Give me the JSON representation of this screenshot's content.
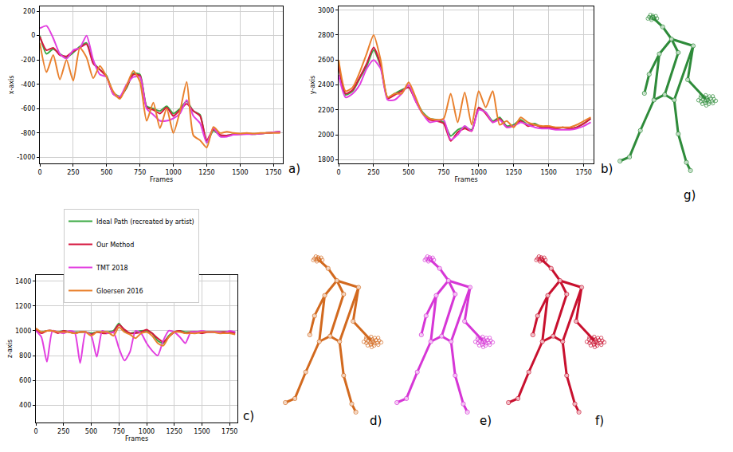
{
  "chart_data": [
    {
      "type": "line",
      "label": "a)",
      "x_label": "Frames",
      "y_label": "x-axis",
      "grid": true,
      "legend": "left",
      "x": [
        0,
        50,
        100,
        150,
        200,
        250,
        300,
        350,
        400,
        450,
        500,
        550,
        600,
        650,
        700,
        750,
        800,
        850,
        900,
        950,
        1000,
        1050,
        1100,
        1150,
        1200,
        1250,
        1300,
        1350,
        1400,
        1450,
        1500,
        1550,
        1600,
        1650,
        1700,
        1750,
        1800
      ],
      "xlim": [
        0,
        1820
      ],
      "xticks": [
        0,
        250,
        500,
        750,
        1000,
        1250,
        1500,
        1750
      ],
      "ylim": [
        -1050,
        240
      ],
      "yticks": [
        -1000,
        -800,
        -600,
        -400,
        -200,
        0,
        200
      ],
      "series": [
        {
          "name": "Ideal Path (recreated by artist)",
          "color": "#3aa843",
          "values": [
            0,
            -150,
            -110,
            -150,
            -180,
            -140,
            -90,
            -60,
            -220,
            -280,
            -330,
            -470,
            -500,
            -430,
            -310,
            -320,
            -580,
            -600,
            -620,
            -580,
            -640,
            -600,
            -540,
            -620,
            -650,
            -880,
            -780,
            -820,
            -820,
            -810,
            -810,
            -805,
            -810,
            -805,
            -800,
            -795,
            -790
          ]
        },
        {
          "name": "Our Method",
          "color": "#d6173f",
          "values": [
            -10,
            -120,
            -100,
            -160,
            -170,
            -130,
            -100,
            -70,
            -230,
            -280,
            -340,
            -480,
            -510,
            -420,
            -320,
            -330,
            -590,
            -610,
            -640,
            -590,
            -660,
            -610,
            -560,
            -620,
            -660,
            -860,
            -770,
            -815,
            -820,
            -812,
            -808,
            -805,
            -808,
            -805,
            -800,
            -795,
            -790
          ]
        },
        {
          "name": "TMT 2018",
          "color": "#e23fe0",
          "values": [
            60,
            80,
            -20,
            -150,
            -190,
            -120,
            -100,
            0,
            -200,
            -320,
            -340,
            -480,
            -500,
            -400,
            -340,
            -340,
            -600,
            -650,
            -700,
            -700,
            -680,
            -640,
            -530,
            -660,
            -720,
            -880,
            -760,
            -830,
            -830,
            -815,
            -812,
            -810,
            -810,
            -805,
            -800,
            -795,
            -790
          ]
        },
        {
          "name": "Gloersen 2016",
          "color": "#e9802d",
          "values": [
            -60,
            -300,
            -160,
            -360,
            -200,
            -370,
            -100,
            -180,
            -350,
            -250,
            -340,
            -460,
            -520,
            -410,
            -290,
            -380,
            -700,
            -550,
            -760,
            -600,
            -800,
            -620,
            -380,
            -820,
            -860,
            -920,
            -750,
            -800,
            -790,
            -800,
            -805,
            -800,
            -805,
            -800,
            -800,
            -800,
            -800
          ]
        }
      ]
    },
    {
      "type": "line",
      "label": "b)",
      "x_label": "Frames",
      "y_label": "y-axis",
      "grid": true,
      "x": [
        0,
        50,
        100,
        150,
        200,
        250,
        300,
        350,
        400,
        450,
        500,
        550,
        600,
        650,
        700,
        750,
        800,
        850,
        900,
        950,
        1000,
        1050,
        1100,
        1150,
        1200,
        1250,
        1300,
        1350,
        1400,
        1450,
        1500,
        1550,
        1600,
        1650,
        1700,
        1750,
        1800
      ],
      "xlim": [
        0,
        1820
      ],
      "xticks": [
        0,
        250,
        500,
        750,
        1000,
        1250,
        1500,
        1750
      ],
      "ylim": [
        1770,
        3030
      ],
      "yticks": [
        1800,
        2000,
        2200,
        2400,
        2600,
        2800,
        3000
      ],
      "series": [
        {
          "name": "Ideal Path (recreated by artist)",
          "color": "#3aa843",
          "values": [
            2550,
            2320,
            2350,
            2450,
            2550,
            2680,
            2550,
            2300,
            2330,
            2360,
            2380,
            2280,
            2180,
            2130,
            2120,
            2100,
            1990,
            2040,
            2060,
            2040,
            2210,
            2180,
            2110,
            2140,
            2070,
            2080,
            2120,
            2080,
            2090,
            2060,
            2060,
            2050,
            2060,
            2050,
            2060,
            2090,
            2130
          ]
        },
        {
          "name": "Our Method",
          "color": "#d6173f",
          "values": [
            2560,
            2330,
            2360,
            2460,
            2570,
            2700,
            2560,
            2290,
            2320,
            2350,
            2380,
            2270,
            2170,
            2120,
            2110,
            2090,
            1950,
            2020,
            2050,
            2030,
            2220,
            2170,
            2100,
            2130,
            2060,
            2070,
            2110,
            2070,
            2080,
            2060,
            2060,
            2050,
            2060,
            2050,
            2060,
            2090,
            2130
          ]
        },
        {
          "name": "TMT 2018",
          "color": "#e23fe0",
          "values": [
            2480,
            2300,
            2330,
            2400,
            2530,
            2600,
            2530,
            2280,
            2280,
            2330,
            2400,
            2270,
            2170,
            2100,
            2110,
            2120,
            1960,
            2000,
            2070,
            2030,
            2200,
            2180,
            2100,
            2120,
            2060,
            2070,
            2100,
            2080,
            2060,
            2050,
            2050,
            2040,
            2040,
            2040,
            2050,
            2070,
            2100
          ]
        },
        {
          "name": "Gloersen 2016",
          "color": "#e9802d",
          "values": [
            2600,
            2350,
            2380,
            2500,
            2650,
            2800,
            2600,
            2300,
            2330,
            2330,
            2420,
            2300,
            2170,
            2130,
            2120,
            2130,
            2330,
            2100,
            2340,
            2080,
            2350,
            2220,
            2350,
            2080,
            2110,
            2060,
            2140,
            2100,
            2080,
            2070,
            2070,
            2060,
            2060,
            2060,
            2080,
            2110,
            2140
          ]
        }
      ]
    },
    {
      "type": "line",
      "label": "c)",
      "x_label": "Frames",
      "y_label": "z-axis",
      "grid": true,
      "x": [
        0,
        50,
        100,
        150,
        200,
        250,
        300,
        350,
        400,
        450,
        500,
        550,
        600,
        650,
        700,
        750,
        800,
        850,
        900,
        950,
        1000,
        1050,
        1100,
        1150,
        1200,
        1250,
        1300,
        1350,
        1400,
        1450,
        1500,
        1550,
        1600,
        1650,
        1700,
        1750,
        1800
      ],
      "xlim": [
        0,
        1820
      ],
      "xticks": [
        0,
        250,
        500,
        750,
        1000,
        1250,
        1500,
        1750
      ],
      "ylim": [
        260,
        1450
      ],
      "yticks": [
        400,
        600,
        800,
        1000,
        1200,
        1400
      ],
      "series": [
        {
          "name": "Ideal Path (recreated by artist)",
          "color": "#3aa843",
          "values": [
            1000,
            990,
            1000,
            1000,
            990,
            1000,
            990,
            990,
            990,
            990,
            980,
            990,
            990,
            990,
            1000,
            1060,
            1000,
            980,
            990,
            1000,
            1000,
            980,
            920,
            900,
            960,
            990,
            1000,
            990,
            990,
            990,
            990,
            990,
            990,
            990,
            990,
            990,
            990
          ]
        },
        {
          "name": "Our Method",
          "color": "#d6173f",
          "values": [
            1010,
            980,
            1000,
            1000,
            980,
            1000,
            990,
            980,
            990,
            990,
            970,
            990,
            980,
            980,
            990,
            1050,
            1010,
            980,
            980,
            990,
            1010,
            980,
            940,
            910,
            950,
            990,
            1000,
            980,
            990,
            990,
            980,
            990,
            990,
            990,
            990,
            990,
            980
          ]
        },
        {
          "name": "TMT 2018",
          "color": "#e23fe0",
          "values": [
            1000,
            950,
            750,
            1000,
            990,
            980,
            1000,
            990,
            740,
            990,
            960,
            790,
            1000,
            980,
            990,
            860,
            760,
            830,
            1000,
            980,
            900,
            840,
            800,
            920,
            1000,
            990,
            950,
            900,
            990,
            990,
            1000,
            990,
            990,
            990,
            980,
            1000,
            990
          ]
        },
        {
          "name": "Gloersen 2016",
          "color": "#e9802d",
          "values": [
            1020,
            990,
            1000,
            1000,
            990,
            990,
            990,
            980,
            990,
            990,
            960,
            990,
            990,
            990,
            960,
            1030,
            990,
            970,
            940,
            980,
            990,
            960,
            900,
            880,
            950,
            990,
            990,
            980,
            980,
            980,
            990,
            990,
            990,
            980,
            980,
            980,
            970
          ]
        }
      ]
    }
  ],
  "figures": [
    {
      "label": "d)",
      "color": "#d2691e"
    },
    {
      "label": "e)",
      "color": "#d636d6"
    },
    {
      "label": "f)",
      "color": "#c8102e"
    },
    {
      "label": "g)",
      "color": "#2e8b3a"
    }
  ]
}
